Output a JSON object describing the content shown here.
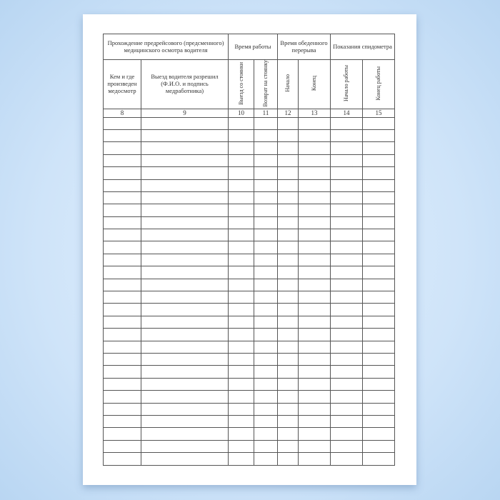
{
  "table": {
    "group_headers": [
      "Прохождение предрейсового (предсменного) медицинского осмотра водителя",
      "Время работы",
      "Время обеденного перерыва",
      "Показания спидометра"
    ],
    "sub_headers": [
      "Кем и где произведен медосмотр",
      "Выезд водителя разрешил (Ф.И.О. и подпись медработника)",
      "Выезд со стоянки",
      "Возврат на стоянку",
      "Начало",
      "Конец",
      "Начало работы",
      "Конец работы"
    ],
    "column_numbers": [
      "8",
      "9",
      "10",
      "11",
      "12",
      "13",
      "14",
      "15"
    ],
    "empty_rows": 28
  }
}
